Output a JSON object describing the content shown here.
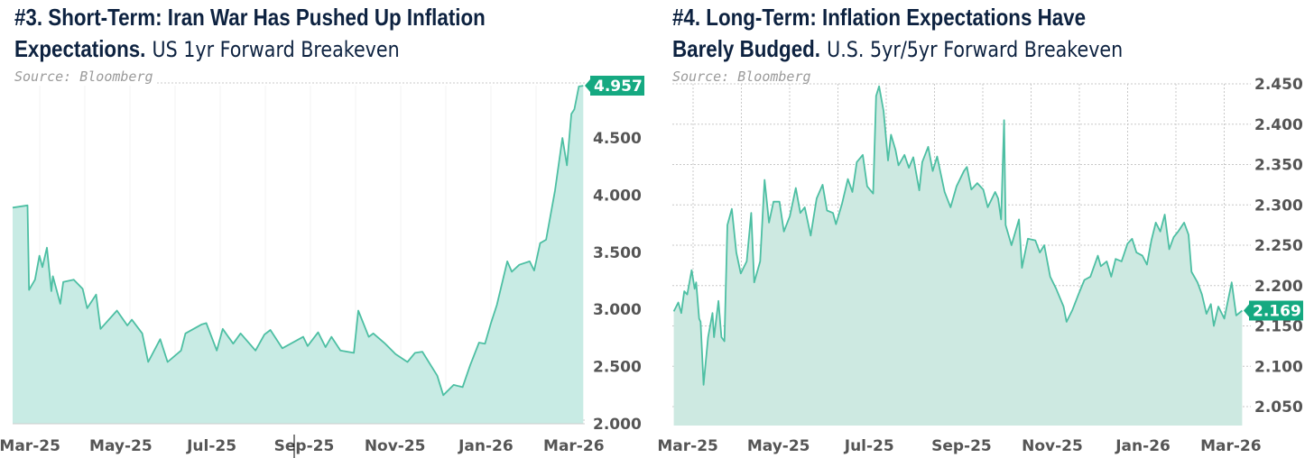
{
  "colors": {
    "line": "#4dbfa3",
    "fill": "#c8ebe4",
    "fill2": "#cde9e1",
    "badge": "#15a981",
    "title": "#0d2240",
    "tick": "#555555",
    "grid": "#c8c8c8"
  },
  "chart_data": [
    {
      "type": "area",
      "title_bold_line1": "#3. Short-Term: Iran War Has Pushed Up Inflation",
      "title_bold_line2": "Expectations.",
      "subtitle": "US 1yr Forward Breakeven",
      "source": "Source: Bloomberg",
      "last_value_label": "4.957",
      "yticks": [
        "2.000",
        "2.500",
        "3.000",
        "3.500",
        "4.000",
        "4.500"
      ],
      "ylim": [
        2.0,
        4.957
      ],
      "xticks": [
        {
          "label": "Mar-25",
          "date": "2025-03-01"
        },
        {
          "label": "May-25",
          "date": "2025-05-01"
        },
        {
          "label": "Jul-25",
          "date": "2025-07-01"
        },
        {
          "label": "Sep-25",
          "date": "2025-09-01"
        },
        {
          "label": "Nov-25",
          "date": "2025-11-01"
        },
        {
          "label": "Jan-26",
          "date": "2026-01-01"
        },
        {
          "label": "Mar-26",
          "date": "2026-03-01"
        }
      ],
      "xlim": [
        "2025-02-18",
        "2026-03-09"
      ],
      "grid": false,
      "points": [
        [
          "2025-02-18",
          3.89
        ],
        [
          "2025-02-28",
          3.91
        ],
        [
          "2025-03-01",
          3.17
        ],
        [
          "2025-03-05",
          3.26
        ],
        [
          "2025-03-08",
          3.47
        ],
        [
          "2025-03-10",
          3.37
        ],
        [
          "2025-03-13",
          3.54
        ],
        [
          "2025-03-16",
          3.16
        ],
        [
          "2025-03-17",
          3.29
        ],
        [
          "2025-03-22",
          3.05
        ],
        [
          "2025-03-24",
          3.24
        ],
        [
          "2025-03-31",
          3.26
        ],
        [
          "2025-04-06",
          3.18
        ],
        [
          "2025-04-09",
          3.01
        ],
        [
          "2025-04-15",
          3.13
        ],
        [
          "2025-04-18",
          2.83
        ],
        [
          "2025-04-29",
          2.99
        ],
        [
          "2025-05-06",
          2.86
        ],
        [
          "2025-05-09",
          2.91
        ],
        [
          "2025-05-16",
          2.79
        ],
        [
          "2025-05-20",
          2.54
        ],
        [
          "2025-05-28",
          2.74
        ],
        [
          "2025-06-02",
          2.54
        ],
        [
          "2025-06-11",
          2.64
        ],
        [
          "2025-06-14",
          2.79
        ],
        [
          "2025-06-25",
          2.87
        ],
        [
          "2025-06-28",
          2.88
        ],
        [
          "2025-07-05",
          2.64
        ],
        [
          "2025-07-09",
          2.83
        ],
        [
          "2025-07-16",
          2.7
        ],
        [
          "2025-07-21",
          2.79
        ],
        [
          "2025-07-31",
          2.64
        ],
        [
          "2025-08-06",
          2.78
        ],
        [
          "2025-08-10",
          2.82
        ],
        [
          "2025-08-18",
          2.66
        ],
        [
          "2025-09-01",
          2.76
        ],
        [
          "2025-09-04",
          2.68
        ],
        [
          "2025-09-11",
          2.8
        ],
        [
          "2025-09-16",
          2.67
        ],
        [
          "2025-09-20",
          2.76
        ],
        [
          "2025-09-26",
          2.64
        ],
        [
          "2025-10-05",
          2.62
        ],
        [
          "2025-10-08",
          2.99
        ],
        [
          "2025-10-15",
          2.76
        ],
        [
          "2025-10-18",
          2.79
        ],
        [
          "2025-10-26",
          2.7
        ],
        [
          "2025-11-02",
          2.61
        ],
        [
          "2025-11-10",
          2.54
        ],
        [
          "2025-11-15",
          2.62
        ],
        [
          "2025-11-20",
          2.63
        ],
        [
          "2025-11-30",
          2.42
        ],
        [
          "2025-12-04",
          2.25
        ],
        [
          "2025-12-11",
          2.34
        ],
        [
          "2025-12-17",
          2.32
        ],
        [
          "2025-12-22",
          2.51
        ],
        [
          "2025-12-28",
          2.71
        ],
        [
          "2026-01-01",
          2.7
        ],
        [
          "2026-01-05",
          2.88
        ],
        [
          "2026-01-09",
          3.04
        ],
        [
          "2026-01-16",
          3.42
        ],
        [
          "2026-01-19",
          3.33
        ],
        [
          "2026-01-24",
          3.39
        ],
        [
          "2026-01-31",
          3.42
        ],
        [
          "2026-02-03",
          3.34
        ],
        [
          "2026-02-07",
          3.58
        ],
        [
          "2026-02-11",
          3.61
        ],
        [
          "2026-02-17",
          4.04
        ],
        [
          "2026-02-22",
          4.5
        ],
        [
          "2026-02-25",
          4.26
        ],
        [
          "2026-02-28",
          4.71
        ],
        [
          "2026-03-02",
          4.75
        ],
        [
          "2026-03-05",
          4.95
        ],
        [
          "2026-03-08",
          4.957
        ]
      ]
    },
    {
      "type": "area",
      "title_bold_line1": "#4. Long-Term: Inflation Expectations Have",
      "title_bold_line2": "Barely Budged.",
      "subtitle": "U.S. 5yr/5yr Forward Breakeven",
      "source": "Source: Bloomberg",
      "last_value_label": "2.169",
      "yticks": [
        "2.050",
        "2.100",
        "2.150",
        "2.200",
        "2.250",
        "2.300",
        "2.350",
        "2.400",
        "2.450"
      ],
      "ylim": [
        2.025,
        2.45
      ],
      "xticks": [
        {
          "label": "Mar-25",
          "date": "2025-03-01"
        },
        {
          "label": "May-25",
          "date": "2025-05-01"
        },
        {
          "label": "Jul-25",
          "date": "2025-07-01"
        },
        {
          "label": "Sep-25",
          "date": "2025-09-01"
        },
        {
          "label": "Nov-25",
          "date": "2025-11-01"
        },
        {
          "label": "Jan-26",
          "date": "2026-01-01"
        },
        {
          "label": "Mar-26",
          "date": "2026-03-01"
        }
      ],
      "xlim": [
        "2025-02-18",
        "2026-03-09"
      ],
      "grid": true,
      "points": [
        [
          "2025-02-19",
          2.168
        ],
        [
          "2025-02-22",
          2.179
        ],
        [
          "2025-02-24",
          2.166
        ],
        [
          "2025-02-26",
          2.193
        ],
        [
          "2025-02-28",
          2.189
        ],
        [
          "2025-03-03",
          2.219
        ],
        [
          "2025-03-05",
          2.196
        ],
        [
          "2025-03-06",
          2.204
        ],
        [
          "2025-03-08",
          2.159
        ],
        [
          "2025-03-09",
          2.155
        ],
        [
          "2025-03-11",
          2.077
        ],
        [
          "2025-03-14",
          2.136
        ],
        [
          "2025-03-17",
          2.166
        ],
        [
          "2025-03-18",
          2.136
        ],
        [
          "2025-03-21",
          2.181
        ],
        [
          "2025-03-23",
          2.136
        ],
        [
          "2025-03-25",
          2.131
        ],
        [
          "2025-03-27",
          2.275
        ],
        [
          "2025-03-30",
          2.295
        ],
        [
          "2025-04-02",
          2.241
        ],
        [
          "2025-04-05",
          2.215
        ],
        [
          "2025-04-09",
          2.23
        ],
        [
          "2025-04-12",
          2.29
        ],
        [
          "2025-04-14",
          2.204
        ],
        [
          "2025-04-18",
          2.23
        ],
        [
          "2025-04-21",
          2.331
        ],
        [
          "2025-04-24",
          2.278
        ],
        [
          "2025-04-27",
          2.304
        ],
        [
          "2025-05-01",
          2.304
        ],
        [
          "2025-05-04",
          2.267
        ],
        [
          "2025-05-08",
          2.286
        ],
        [
          "2025-05-12",
          2.321
        ],
        [
          "2025-05-15",
          2.29
        ],
        [
          "2025-05-18",
          2.297
        ],
        [
          "2025-05-22",
          2.262
        ],
        [
          "2025-05-26",
          2.308
        ],
        [
          "2025-05-30",
          2.325
        ],
        [
          "2025-06-02",
          2.293
        ],
        [
          "2025-06-06",
          2.29
        ],
        [
          "2025-06-08",
          2.276
        ],
        [
          "2025-06-12",
          2.301
        ],
        [
          "2025-06-16",
          2.332
        ],
        [
          "2025-06-19",
          2.316
        ],
        [
          "2025-06-22",
          2.353
        ],
        [
          "2025-06-26",
          2.362
        ],
        [
          "2025-06-29",
          2.323
        ],
        [
          "2025-07-03",
          2.314
        ],
        [
          "2025-07-05",
          2.435
        ],
        [
          "2025-07-07",
          2.447
        ],
        [
          "2025-07-10",
          2.416
        ],
        [
          "2025-07-13",
          2.355
        ],
        [
          "2025-07-15",
          2.387
        ],
        [
          "2025-07-18",
          2.368
        ],
        [
          "2025-07-20",
          2.349
        ],
        [
          "2025-07-24",
          2.362
        ],
        [
          "2025-07-27",
          2.346
        ],
        [
          "2025-07-30",
          2.359
        ],
        [
          "2025-08-03",
          2.318
        ],
        [
          "2025-08-05",
          2.353
        ],
        [
          "2025-08-09",
          2.372
        ],
        [
          "2025-08-12",
          2.342
        ],
        [
          "2025-08-15",
          2.36
        ],
        [
          "2025-08-20",
          2.316
        ],
        [
          "2025-08-24",
          2.297
        ],
        [
          "2025-08-28",
          2.323
        ],
        [
          "2025-09-02",
          2.342
        ],
        [
          "2025-09-04",
          2.347
        ],
        [
          "2025-09-07",
          2.319
        ],
        [
          "2025-09-11",
          2.327
        ],
        [
          "2025-09-15",
          2.319
        ],
        [
          "2025-09-18",
          2.297
        ],
        [
          "2025-09-23",
          2.316
        ],
        [
          "2025-09-25",
          2.308
        ],
        [
          "2025-09-27",
          2.282
        ],
        [
          "2025-09-29",
          2.405
        ],
        [
          "2025-09-30",
          2.275
        ],
        [
          "2025-10-04",
          2.25
        ],
        [
          "2025-10-09",
          2.282
        ],
        [
          "2025-10-11",
          2.222
        ],
        [
          "2025-10-15",
          2.258
        ],
        [
          "2025-10-20",
          2.256
        ],
        [
          "2025-10-23",
          2.241
        ],
        [
          "2025-10-26",
          2.25
        ],
        [
          "2025-10-30",
          2.211
        ],
        [
          "2025-11-03",
          2.196
        ],
        [
          "2025-11-08",
          2.174
        ],
        [
          "2025-11-10",
          2.155
        ],
        [
          "2025-11-14",
          2.17
        ],
        [
          "2025-11-18",
          2.189
        ],
        [
          "2025-11-22",
          2.207
        ],
        [
          "2025-11-26",
          2.211
        ],
        [
          "2025-12-01",
          2.237
        ],
        [
          "2025-12-03",
          2.224
        ],
        [
          "2025-12-07",
          2.23
        ],
        [
          "2025-12-10",
          2.211
        ],
        [
          "2025-12-13",
          2.233
        ],
        [
          "2025-12-17",
          2.23
        ],
        [
          "2025-12-21",
          2.252
        ],
        [
          "2025-12-24",
          2.258
        ],
        [
          "2025-12-27",
          2.241
        ],
        [
          "2025-12-31",
          2.237
        ],
        [
          "2026-01-03",
          2.226
        ],
        [
          "2026-01-06",
          2.256
        ],
        [
          "2026-01-09",
          2.278
        ],
        [
          "2026-01-12",
          2.267
        ],
        [
          "2026-01-15",
          2.288
        ],
        [
          "2026-01-18",
          2.245
        ],
        [
          "2026-01-21",
          2.26
        ],
        [
          "2026-01-24",
          2.267
        ],
        [
          "2026-01-28",
          2.278
        ],
        [
          "2026-01-31",
          2.263
        ],
        [
          "2026-02-02",
          2.217
        ],
        [
          "2026-02-06",
          2.204
        ],
        [
          "2026-02-09",
          2.189
        ],
        [
          "2026-02-12",
          2.165
        ],
        [
          "2026-02-15",
          2.177
        ],
        [
          "2026-02-17",
          2.15
        ],
        [
          "2026-02-20",
          2.174
        ],
        [
          "2026-02-24",
          2.159
        ],
        [
          "2026-03-01",
          2.204
        ],
        [
          "2026-03-04",
          2.163
        ],
        [
          "2026-03-08",
          2.169
        ]
      ]
    }
  ]
}
